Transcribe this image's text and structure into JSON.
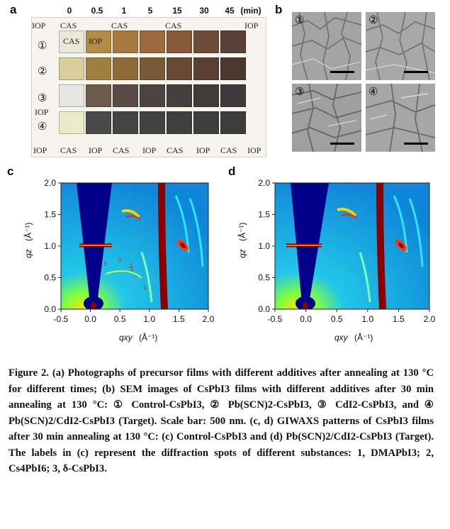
{
  "panel_a": {
    "letter": "a",
    "time_labels": [
      "0",
      "0.5",
      "1",
      "5",
      "15",
      "30",
      "45"
    ],
    "time_unit": "(min)",
    "row_numbers": [
      "①",
      "②",
      "③",
      "④"
    ],
    "label_iop": "IOP",
    "label_cas": "CAS"
  },
  "panel_b": {
    "letter": "b",
    "images": [
      "①",
      "②",
      "③",
      "④"
    ]
  },
  "panel_c": {
    "letter": "c",
    "x_label": "qxy",
    "y_label": "qz",
    "unit": "(Å⁻¹)",
    "x_ticks": [
      "-0.5",
      "0.0",
      "0.5",
      "1.0",
      "1.5",
      "2.0"
    ],
    "y_ticks": [
      "0.0",
      "0.5",
      "1.0",
      "1.5",
      "2.0"
    ],
    "spot_labels": [
      "3",
      "3",
      "2",
      "1",
      "1"
    ]
  },
  "panel_d": {
    "letter": "d",
    "x_label": "qxy",
    "y_label": "qz",
    "unit": "(Å⁻¹)",
    "x_ticks": [
      "-0.5",
      "0.0",
      "0.5",
      "1.0",
      "1.5",
      "2.0"
    ],
    "y_ticks": [
      "0.0",
      "0.5",
      "1.0",
      "1.5",
      "2.0"
    ]
  },
  "caption": {
    "text": "Figure 2. (a) Photographs of precursor films with different additives after annealing at 130 °C for different times; (b) SEM images of CsPbI3 films with different additives after 30 min annealing at 130 °C: ① Control-CsPbI3, ② Pb(SCN)2-CsPbI3, ③ CdI2-CsPbI3, and ④ Pb(SCN)2/CdI2-CsPbI3 (Target). Scale bar: 500 nm. (c, d) GIWAXS patterns of CsPbI3 films after 30 min annealing at 130 °C: (c) Control-CsPbI3 and (d) Pb(SCN)2/CdI2-CsPbI3 (Target). The labels in (c) represent the diffraction spots of different substances: 1, DMAPbI3; 2, Cs4PbI6; 3, δ-CsPbI3."
  },
  "colors": {
    "detector_blue": "#00008b",
    "ring_red": "#8b0000",
    "bg_cyan": "#1aa3e8"
  }
}
